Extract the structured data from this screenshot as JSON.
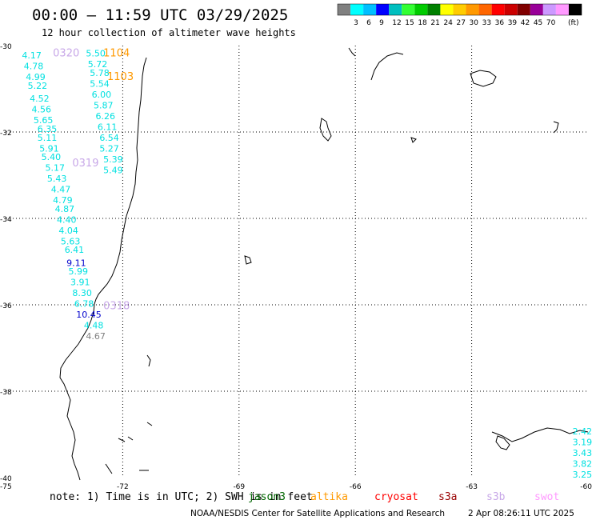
{
  "header": {
    "title": "00:00 – 11:59 UTC 03/29/2025",
    "subtitle": "12 hour collection of altimeter wave heights"
  },
  "color_scale": {
    "colors": [
      "#808080",
      "#00ffff",
      "#00bfff",
      "#0000ff",
      "#00bfbf",
      "#33ff33",
      "#00cc00",
      "#008000",
      "#ffff00",
      "#ffcc00",
      "#ff9900",
      "#ff6600",
      "#ff0000",
      "#cc0000",
      "#800000",
      "#990099",
      "#cc99ff",
      "#ff99ff",
      "#000000"
    ],
    "ticks": [
      "3",
      "6",
      "9",
      "12",
      "15",
      "18",
      "21",
      "24",
      "27",
      "30",
      "33",
      "36",
      "39",
      "42",
      "45",
      "70"
    ],
    "unit": "(ft)"
  },
  "axes": {
    "lat_ticks": [
      {
        "label": "-30",
        "value": -30
      },
      {
        "label": "-32",
        "value": -32
      },
      {
        "label": "-34",
        "value": -34
      },
      {
        "label": "-36",
        "value": -36
      },
      {
        "label": "-38",
        "value": -38
      },
      {
        "label": "-40",
        "value": -40
      }
    ],
    "lon_ticks": [
      {
        "label": "-75",
        "value": -75
      },
      {
        "label": "-72",
        "value": -72
      },
      {
        "label": "-69",
        "value": -69
      },
      {
        "label": "-66",
        "value": -66
      },
      {
        "label": "-63",
        "value": -63
      },
      {
        "label": "-60",
        "value": -60
      }
    ],
    "lat_range": [
      -40,
      -30
    ],
    "lon_range": [
      -75,
      -60
    ],
    "grid": true
  },
  "passes": [
    {
      "label": "0320",
      "lat": -30.25,
      "lon": -73.8,
      "color": "#c8a8e8"
    },
    {
      "label": "1104",
      "lat": -30.25,
      "lon": -72.5,
      "color": "#ff9900"
    },
    {
      "label": "1103",
      "lat": -30.8,
      "lon": -72.4,
      "color": "#ff9900"
    },
    {
      "label": "0319",
      "lat": -32.8,
      "lon": -73.3,
      "color": "#c8a8e8"
    },
    {
      "label": "0318",
      "lat": -36.1,
      "lon": -72.5,
      "color": "#c8a8e8"
    }
  ],
  "wave_heights": {
    "track_left": [
      {
        "value": "4.17",
        "lat": -30.3,
        "lon": -74.6,
        "color": "#00e0e0"
      },
      {
        "value": "4.78",
        "lat": -30.55,
        "lon": -74.55,
        "color": "#00e0e0"
      },
      {
        "value": "4.99",
        "lat": -30.8,
        "lon": -74.5,
        "color": "#00e0e0"
      },
      {
        "value": "5.22",
        "lat": -31.0,
        "lon": -74.45,
        "color": "#00e0e0"
      },
      {
        "value": "4.52",
        "lat": -31.3,
        "lon": -74.4,
        "color": "#00e0e0"
      },
      {
        "value": "4.56",
        "lat": -31.55,
        "lon": -74.35,
        "color": "#00e0e0"
      },
      {
        "value": "5.65",
        "lat": -31.8,
        "lon": -74.3,
        "color": "#00e0e0"
      },
      {
        "value": "6.35",
        "lat": -32.0,
        "lon": -74.2,
        "color": "#00e0e0"
      },
      {
        "value": "5.11",
        "lat": -32.2,
        "lon": -74.2,
        "color": "#00e0e0"
      },
      {
        "value": "5.91",
        "lat": -32.45,
        "lon": -74.15,
        "color": "#00e0e0"
      },
      {
        "value": "5.40",
        "lat": -32.65,
        "lon": -74.1,
        "color": "#00e0e0"
      },
      {
        "value": "5.17",
        "lat": -32.9,
        "lon": -74.0,
        "color": "#00e0e0"
      },
      {
        "value": "5.43",
        "lat": -33.15,
        "lon": -73.95,
        "color": "#00e0e0"
      },
      {
        "value": "4.47",
        "lat": -33.4,
        "lon": -73.85,
        "color": "#00e0e0"
      },
      {
        "value": "4.79",
        "lat": -33.65,
        "lon": -73.8,
        "color": "#00e0e0"
      },
      {
        "value": "4.87",
        "lat": -33.85,
        "lon": -73.75,
        "color": "#00e0e0"
      },
      {
        "value": "4.40",
        "lat": -34.1,
        "lon": -73.7,
        "color": "#00e0e0"
      },
      {
        "value": "4.04",
        "lat": -34.35,
        "lon": -73.65,
        "color": "#00e0e0"
      },
      {
        "value": "5.63",
        "lat": -34.6,
        "lon": -73.6,
        "color": "#00e0e0"
      },
      {
        "value": "6.41",
        "lat": -34.8,
        "lon": -73.5,
        "color": "#00e0e0"
      },
      {
        "value": "9.11",
        "lat": -35.1,
        "lon": -73.45,
        "color": "#0000cc"
      },
      {
        "value": "5.99",
        "lat": -35.3,
        "lon": -73.4,
        "color": "#00e0e0"
      },
      {
        "value": "3.91",
        "lat": -35.55,
        "lon": -73.35,
        "color": "#00e0e0"
      },
      {
        "value": "8.30",
        "lat": -35.8,
        "lon": -73.3,
        "color": "#00e0e0"
      },
      {
        "value": "6.78",
        "lat": -36.05,
        "lon": -73.25,
        "color": "#00e0e0"
      },
      {
        "value": "10.45",
        "lat": -36.3,
        "lon": -73.2,
        "color": "#0000cc"
      },
      {
        "value": "4.48",
        "lat": -36.55,
        "lon": -73.0,
        "color": "#00e0e0"
      },
      {
        "value": "4.67",
        "lat": -36.8,
        "lon": -72.95,
        "color": "#808080"
      }
    ],
    "track_right": [
      {
        "value": "5.50",
        "lat": -30.25,
        "lon": -72.95,
        "color": "#00e0e0"
      },
      {
        "value": "5.72",
        "lat": -30.5,
        "lon": -72.9,
        "color": "#00e0e0"
      },
      {
        "value": "5.78",
        "lat": -30.7,
        "lon": -72.85,
        "color": "#00e0e0"
      },
      {
        "value": "5.54",
        "lat": -30.95,
        "lon": -72.85,
        "color": "#00e0e0"
      },
      {
        "value": "6.00",
        "lat": -31.2,
        "lon": -72.8,
        "color": "#00e0e0"
      },
      {
        "value": "5.87",
        "lat": -31.45,
        "lon": -72.75,
        "color": "#00e0e0"
      },
      {
        "value": "6.26",
        "lat": -31.7,
        "lon": -72.7,
        "color": "#00e0e0"
      },
      {
        "value": "6.11",
        "lat": -31.95,
        "lon": -72.65,
        "color": "#00e0e0"
      },
      {
        "value": "6.54",
        "lat": -32.2,
        "lon": -72.6,
        "color": "#00e0e0"
      },
      {
        "value": "5.27",
        "lat": -32.45,
        "lon": -72.6,
        "color": "#00e0e0"
      },
      {
        "value": "5.39",
        "lat": -32.7,
        "lon": -72.5,
        "color": "#00e0e0"
      },
      {
        "value": "5.49",
        "lat": -32.95,
        "lon": -72.5,
        "color": "#00e0e0"
      }
    ],
    "track_east": [
      {
        "value": "2.42",
        "lat": -39.0,
        "lon": -60.4,
        "color": "#00e0e0"
      },
      {
        "value": "3.19",
        "lat": -39.25,
        "lon": -60.4,
        "color": "#00e0e0"
      },
      {
        "value": "3.43",
        "lat": -39.5,
        "lon": -60.4,
        "color": "#00e0e0"
      },
      {
        "value": "3.82",
        "lat": -39.75,
        "lon": -60.4,
        "color": "#00e0e0"
      },
      {
        "value": "3.25",
        "lat": -40.0,
        "lon": -60.4,
        "color": "#00e0e0"
      }
    ]
  },
  "footer": {
    "note": "note: 1) Time is in UTC; 2) SWH is in feet",
    "legend_labels": [
      {
        "name": "jason3",
        "color": "#006600"
      },
      {
        "name": "altika",
        "color": "#ff9900"
      },
      {
        "name": "cryosat",
        "color": "#ff0000"
      },
      {
        "name": "s3a",
        "color": "#990000"
      },
      {
        "name": "s3b",
        "color": "#c8a8e8"
      },
      {
        "name": "swot",
        "color": "#ff99ff"
      }
    ],
    "credit": "NOAA/NESDIS Center for Satellite Applications and Research",
    "timestamp": "2 Apr 08:26:11 UTC 2025"
  }
}
